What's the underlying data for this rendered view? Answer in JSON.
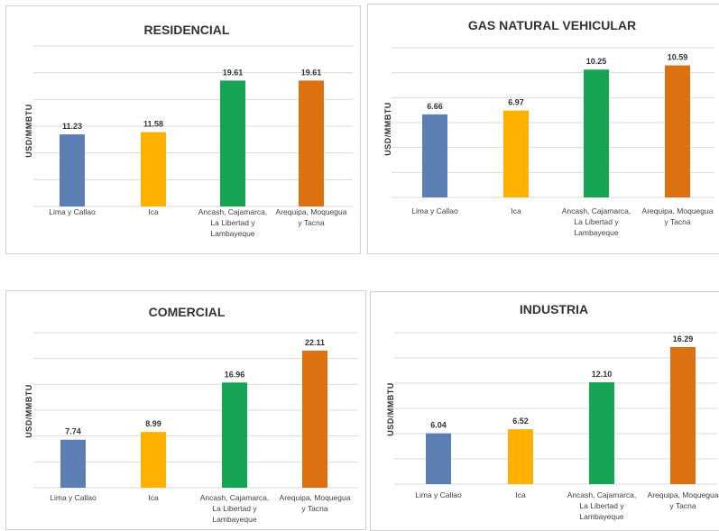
{
  "chart_data": [
    {
      "type": "bar",
      "title": "RESIDENCIAL",
      "ylabel": "USD/MMBTU",
      "categories": [
        "Lima y Callao",
        "Ica",
        "Ancash, Cajamarca, La Libertad y Lambayeque",
        "Arequipa, Moquegua y Tacna"
      ],
      "category_lines": [
        [
          "Lima y Callao"
        ],
        [
          "Ica"
        ],
        [
          "Ancash, Cajamarca,",
          "La Libertad y",
          "Lambayeque"
        ],
        [
          "Arequipa, Moquegua",
          "y Tacna"
        ]
      ],
      "values": [
        11.23,
        11.58,
        19.61,
        19.61
      ],
      "value_labels": [
        "11.23",
        "11.58",
        "19.61",
        "19.61"
      ],
      "colors": [
        "#5b7fb3",
        "#ffb000",
        "#17a454",
        "#dd7112"
      ],
      "ylim": [
        0,
        25
      ],
      "grid": true
    },
    {
      "type": "bar",
      "title": "GAS NATURAL VEHICULAR",
      "ylabel": "USD/MMBTU",
      "categories": [
        "Lima y Callao",
        "Ica",
        "Ancash, Cajamarca, La Libertad y Lambayeque",
        "Arequipa, Moquegua y Tacna"
      ],
      "category_lines": [
        [
          "Lima y Callao"
        ],
        [
          "Ica"
        ],
        [
          "Ancash, Cajamarca,",
          "La Libertad y",
          "Lambayeque"
        ],
        [
          "Arequipa, Moquegua",
          "y Tacna"
        ]
      ],
      "values": [
        6.66,
        6.97,
        10.25,
        10.59
      ],
      "value_labels": [
        "6.66",
        "6.97",
        "10.25",
        "10.59"
      ],
      "colors": [
        "#5b7fb3",
        "#ffb000",
        "#17a454",
        "#dd7112"
      ],
      "ylim": [
        0,
        12
      ],
      "grid": true
    },
    {
      "type": "bar",
      "title": "COMERCIAL",
      "ylabel": "USD/MMBTU",
      "categories": [
        "Lima y Callao",
        "Ica",
        "Ancash, Cajamarca, La Libertad y Lambayeque",
        "Arequipa, Moquegua y Tacna"
      ],
      "category_lines": [
        [
          "Lima y Callao"
        ],
        [
          "Ica"
        ],
        [
          "Ancash, Cajamarca,",
          "La Libertad y",
          "Lambayeque"
        ],
        [
          "Arequipa, Moquegua",
          "y Tacna"
        ]
      ],
      "values": [
        7.74,
        8.99,
        16.96,
        22.11
      ],
      "value_labels": [
        "7.74",
        "8.99",
        "16.96",
        "22.11"
      ],
      "colors": [
        "#5b7fb3",
        "#ffb000",
        "#17a454",
        "#dd7112"
      ],
      "ylim": [
        0,
        25
      ],
      "grid": true
    },
    {
      "type": "bar",
      "title": "INDUSTRIA",
      "ylabel": "USD/MMBTU",
      "categories": [
        "Lima y Callao",
        "Ica",
        "Ancash, Cajamarca, La Libertad y Lambayeque",
        "Arequipa, Moquegua y Tacna"
      ],
      "category_lines": [
        [
          "Lima y Callao"
        ],
        [
          "Ica"
        ],
        [
          "Ancash, Cajamarca,",
          "La Libertad y",
          "Lambayeque"
        ],
        [
          "Arequipa, Moquegua",
          "y Tacna"
        ]
      ],
      "values": [
        6.04,
        6.52,
        12.1,
        16.29
      ],
      "value_labels": [
        "6.04",
        "6.52",
        "12.10",
        "16.29"
      ],
      "colors": [
        "#5b7fb3",
        "#ffb000",
        "#17a454",
        "#dd7112"
      ],
      "ylim": [
        0,
        18
      ],
      "grid": true
    }
  ]
}
